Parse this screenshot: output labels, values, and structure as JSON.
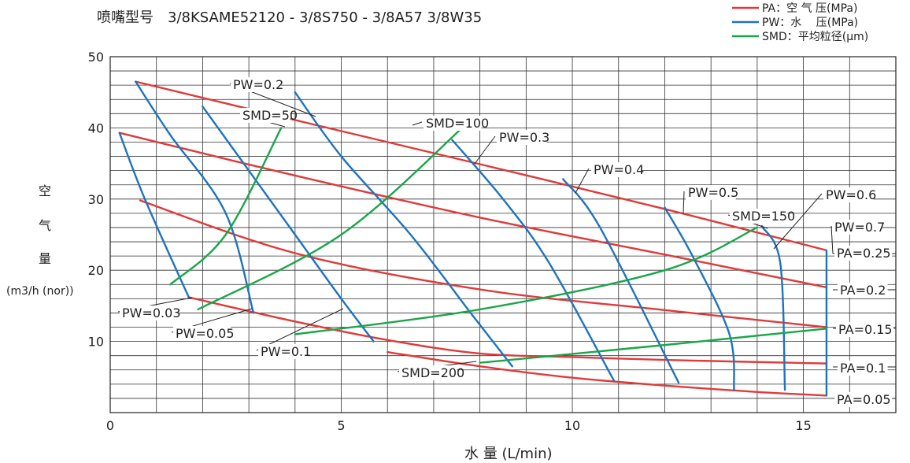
{
  "chart_data": {
    "type": "line",
    "title": "喷嘴型号　3/8KSAME52120 - 3/8S750 - 3/8A57 3/8W35",
    "xlabel": "水 量 (L/min)",
    "ylabel": [
      "空",
      "气",
      "量",
      "(m3/h (nor))"
    ],
    "xlim": [
      0,
      17
    ],
    "ylim": [
      0,
      50
    ],
    "x_ticks": [
      "0",
      "5",
      "10",
      "15"
    ],
    "y_ticks": [
      "10",
      "20",
      "30",
      "40",
      "50"
    ],
    "grid": true,
    "legend_position": "top-right",
    "legend": [
      {
        "label": "PA：空 气 压(MPa)",
        "color": "#e03a3a"
      },
      {
        "label": "PW：水　 压(MPa)",
        "color": "#1e73be"
      },
      {
        "label": "SMD：平均粒径(μm)",
        "color": "#1aa64a"
      }
    ],
    "series": [
      {
        "name": "PA=0.25",
        "group": "PA",
        "points": [
          [
            0.55,
            46.5
          ],
          [
            4,
            41.1
          ],
          [
            8,
            34.9
          ],
          [
            12,
            28.6
          ],
          [
            15.5,
            22.8
          ]
        ]
      },
      {
        "name": "PA=0.2",
        "group": "PA",
        "points": [
          [
            0.2,
            39.3
          ],
          [
            4,
            33.3
          ],
          [
            8,
            27.4
          ],
          [
            12,
            22.2
          ],
          [
            15.5,
            17.6
          ]
        ]
      },
      {
        "name": "PA=0.15",
        "group": "PA",
        "points": [
          [
            0.65,
            29.8
          ],
          [
            4,
            22.4
          ],
          [
            8,
            17.3
          ],
          [
            12,
            14.4
          ],
          [
            15.5,
            12
          ]
        ]
      },
      {
        "name": "PA=0.1",
        "group": "PA",
        "points": [
          [
            1.7,
            16.2
          ],
          [
            4,
            12.8
          ],
          [
            6,
            10.2
          ],
          [
            8,
            8.3
          ],
          [
            10,
            7.8
          ],
          [
            12,
            7.4
          ],
          [
            15.5,
            6.9
          ]
        ]
      },
      {
        "name": "PA=0.05",
        "group": "PA",
        "points": [
          [
            6,
            8.5
          ],
          [
            8,
            6.5
          ],
          [
            10,
            4.9
          ],
          [
            12,
            3.8
          ],
          [
            14,
            2.9
          ],
          [
            15.5,
            2.4
          ]
        ]
      },
      {
        "name": "PW=0.03",
        "group": "PW",
        "points": [
          [
            0.2,
            39.3
          ],
          [
            0.75,
            30
          ],
          [
            1.7,
            16.2
          ]
        ]
      },
      {
        "name": "PW=0.03",
        "group": "PW",
        "points": [
          [
            0.55,
            46.5
          ],
          [
            1.3,
            39
          ],
          [
            2.5,
            28
          ],
          [
            3.1,
            14
          ]
        ]
      },
      {
        "name": "PW=0.05",
        "group": "PW",
        "points": [
          [
            2,
            43
          ],
          [
            3,
            34
          ],
          [
            4,
            25
          ],
          [
            5,
            16
          ],
          [
            5.7,
            10
          ]
        ]
      },
      {
        "name": "PW=0.1",
        "group": "PW",
        "points": [
          [
            4,
            45
          ],
          [
            5,
            36
          ],
          [
            6.5,
            25
          ],
          [
            7.8,
            14
          ],
          [
            8.7,
            6.5
          ]
        ]
      },
      {
        "name": "PW=0.2",
        "group": "PW",
        "points": [
          [
            7.4,
            38.3
          ],
          [
            8.5,
            30
          ],
          [
            9.5,
            21
          ],
          [
            10.9,
            4.5
          ]
        ]
      },
      {
        "name": "PW=0.3",
        "group": "PW",
        "points": [
          [
            9.8,
            32.8
          ],
          [
            10.6,
            26
          ],
          [
            12.3,
            4.2
          ]
        ]
      },
      {
        "name": "PW=0.4",
        "group": "PW",
        "points": [
          [
            12,
            28.8
          ],
          [
            12.6,
            22
          ],
          [
            13.4,
            11
          ],
          [
            13.5,
            3.1
          ]
        ]
      },
      {
        "name": "PW=0.5",
        "group": "PW",
        "points": [
          [
            14.1,
            26.2
          ],
          [
            14.5,
            21
          ],
          [
            14.6,
            3.2
          ]
        ]
      },
      {
        "name": "PW=0.6",
        "group": "PW",
        "points": [
          [
            15.5,
            22.8
          ],
          [
            15.5,
            2.4
          ]
        ]
      },
      {
        "name": "SMD=50",
        "group": "SMD",
        "points": [
          [
            1.3,
            18
          ],
          [
            2.5,
            25
          ],
          [
            3.7,
            40
          ]
        ]
      },
      {
        "name": "SMD=100",
        "group": "SMD",
        "points": [
          [
            1.9,
            14.5
          ],
          [
            5,
            25
          ],
          [
            7.7,
            40.5
          ]
        ]
      },
      {
        "name": "SMD=150",
        "group": "SMD",
        "points": [
          [
            4,
            11
          ],
          [
            8,
            14.5
          ],
          [
            12,
            20
          ],
          [
            14,
            26
          ]
        ]
      },
      {
        "name": "SMD=200",
        "group": "SMD",
        "points": [
          [
            8,
            7
          ],
          [
            12,
            9.5
          ],
          [
            15.5,
            11.8
          ]
        ]
      }
    ],
    "labels": [
      {
        "text": "PA=0.25"
      },
      {
        "text": "PA=0.2"
      },
      {
        "text": "PA=0.15"
      },
      {
        "text": "PA=0.1"
      },
      {
        "text": "PA=0.05"
      },
      {
        "text": "PW=0.03"
      },
      {
        "text": "PW=0.05"
      },
      {
        "text": "PW=0.1"
      },
      {
        "text": "PW=0.2"
      },
      {
        "text": "PW=0.3"
      },
      {
        "text": "PW=0.4"
      },
      {
        "text": "PW=0.5"
      },
      {
        "text": "PW=0.6"
      },
      {
        "text": "PW=0.7"
      },
      {
        "text": "SMD=50"
      },
      {
        "text": "SMD=100"
      },
      {
        "text": "SMD=150"
      },
      {
        "text": "SMD=200"
      }
    ]
  }
}
